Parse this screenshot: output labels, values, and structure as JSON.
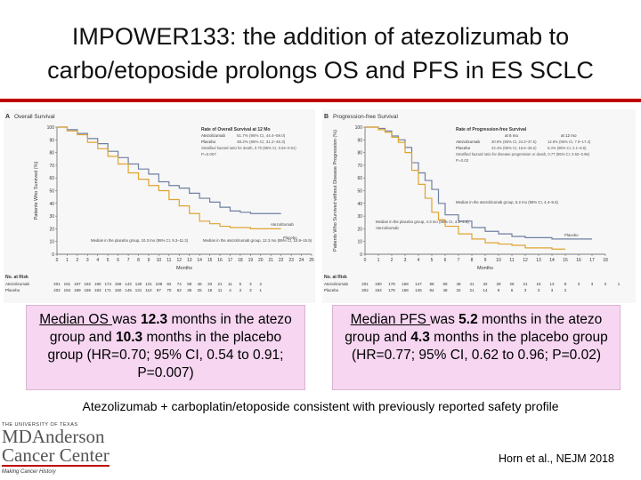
{
  "slide": {
    "title_line1": "IMPOWER133: the addition of atezolizumab to",
    "title_line2": "carbo/etoposide prolongs OS and PFS in ES SCLC",
    "accent_color": "#c00000",
    "safety_note": "Atezolizumab + carboplatin/etoposide consistent with previously reported safety profile",
    "citation": "Horn et al., NEJM 2018"
  },
  "logo": {
    "university": "THE UNIVERSITY OF TEXAS",
    "line1": "MDAnderson",
    "line2": "Cancer Center",
    "tagline": "Making Cancer History"
  },
  "summary_os": {
    "u": "Median OS ",
    "t1": "was ",
    "v1": "12.3",
    "t2": " months in the atezo group and ",
    "v2": "10.3",
    "t3": " months in the placebo group (HR=0.70; 95% CI, 0.54 to 0.91; P=0.007)"
  },
  "summary_pfs": {
    "u": "Median PFS ",
    "t1": "was ",
    "v1": "5.2",
    "t2": " months in the atezo group and ",
    "v2": "4.3",
    "t3": " months in the placebo group (HR=0.77; 95% CI, 0.62 to 0.96; P=0.02)"
  },
  "colors": {
    "atezolizumab": "#6f7fa3",
    "placebo": "#e0a431",
    "background_fill": "#e8e8e8"
  },
  "chart_data": [
    {
      "type": "line",
      "panel": "A",
      "title": "Overall Survival",
      "xlabel": "Months",
      "ylabel": "Patients Who Survived (%)",
      "xlim": [
        0,
        25
      ],
      "ylim": [
        0,
        100
      ],
      "x_ticks": [
        0,
        1,
        2,
        3,
        4,
        5,
        6,
        7,
        8,
        9,
        10,
        11,
        12,
        13,
        14,
        15,
        16,
        17,
        18,
        19,
        20,
        21,
        22,
        23,
        24,
        25
      ],
      "y_ticks": [
        0,
        10,
        20,
        30,
        40,
        50,
        60,
        70,
        80,
        90,
        100
      ],
      "box_heading": "Rate of Overall Survival at 12 Mo",
      "box_rows": [
        {
          "name": "Atezolizumab",
          "stat": "51.7% (95% CI, 44.4–59.0)"
        },
        {
          "name": "Placebo",
          "stat": "38.2% (95% CI, 31.2–45.3)"
        }
      ],
      "box_note1": "Stratified hazard ratio for death, 0.70 (95% CI, 0.54–0.91)",
      "box_note2": "P=0.007",
      "annotations": [
        "Median in the placebo group, 10.3 mo (95% CI, 9.3–11.3)",
        "Median in the atezolizumab group, 12.3 mo (95% CI, 10.8–15.9)",
        "Atezolizumab",
        "Placebo"
      ],
      "series": [
        {
          "name": "Atezolizumab",
          "x": [
            0,
            1,
            2,
            3,
            4,
            5,
            6,
            7,
            8,
            9,
            10,
            11,
            12,
            13,
            14,
            15,
            16,
            17,
            18,
            19,
            20,
            21,
            22
          ],
          "y": [
            100,
            98,
            95,
            91,
            87,
            81,
            76,
            71,
            67,
            63,
            57,
            54,
            52,
            48,
            44,
            41,
            37,
            34,
            33,
            32,
            32,
            32,
            32
          ]
        },
        {
          "name": "Placebo",
          "x": [
            0,
            1,
            2,
            3,
            4,
            5,
            6,
            7,
            8,
            9,
            10,
            11,
            12,
            13,
            14,
            15,
            16,
            17,
            18,
            19,
            20,
            21,
            22
          ],
          "y": [
            100,
            97,
            94,
            88,
            83,
            77,
            71,
            64,
            59,
            54,
            50,
            43,
            38,
            32,
            26,
            24,
            22,
            21,
            21,
            20,
            20,
            20,
            20
          ]
        }
      ],
      "at_risk_heading": "No. at Risk",
      "at_risk": [
        {
          "name": "Atezolizumab",
          "counts": [
            "201",
            "191",
            "187",
            "182",
            "180",
            "174",
            "159",
            "142",
            "130",
            "121",
            "108",
            "92",
            "74",
            "58",
            "46",
            "33",
            "21",
            "11",
            "5",
            "3",
            "2"
          ]
        },
        {
          "name": "Placebo",
          "counts": [
            "202",
            "194",
            "189",
            "186",
            "183",
            "171",
            "160",
            "145",
            "131",
            "110",
            "87",
            "70",
            "52",
            "36",
            "25",
            "18",
            "11",
            "4",
            "3",
            "3",
            "1"
          ]
        }
      ]
    },
    {
      "type": "line",
      "panel": "B",
      "title": "Progression-free Survival",
      "xlabel": "Months",
      "ylabel": "Patients Who Survived without Disease Progression (%)",
      "xlim": [
        0,
        18
      ],
      "ylim": [
        0,
        100
      ],
      "x_ticks": [
        0,
        1,
        2,
        3,
        4,
        5,
        6,
        7,
        8,
        9,
        10,
        11,
        12,
        13,
        14,
        15,
        16,
        17,
        18
      ],
      "y_ticks": [
        0,
        10,
        20,
        30,
        40,
        50,
        60,
        70,
        80,
        90,
        100
      ],
      "box_heading": "Rate of Progression-free Survival",
      "box_cols": [
        "at 6 mo",
        "at 12 mo"
      ],
      "box_rows": [
        {
          "name": "Atezolizumab",
          "stat6": "30.9% (95% CI, 24.3–37.5)",
          "stat12": "12.6% (95% CI, 7.9–17.4)"
        },
        {
          "name": "Placebo",
          "stat6": "22.4% (95% CI, 16.6–28.2)",
          "stat12": "5.4% (95% CI, 2.1–8.6)"
        }
      ],
      "box_note1": "Stratified hazard ratio for disease progression or death, 0.77 (95% CI, 0.62–0.96)",
      "box_note2": "P=0.02",
      "annotations": [
        "Median in the atezolizumab group, 5.2 mo (95% CI, 4.4–5.6)",
        "Median in the placebo group, 4.3 mo (95% CI, 4.2–4.5)",
        "Atezolizumab",
        "Placebo"
      ],
      "series": [
        {
          "name": "Atezolizumab",
          "x": [
            0,
            1,
            1.5,
            2,
            2.5,
            3,
            3.5,
            4,
            4.5,
            5,
            5.5,
            6,
            7,
            8,
            9,
            10,
            11,
            12,
            13,
            14,
            15,
            16,
            17
          ],
          "y": [
            100,
            99,
            97,
            93,
            90,
            84,
            72,
            64,
            58,
            51,
            40,
            31,
            26,
            21,
            18,
            16,
            14,
            13,
            13,
            12,
            12,
            12,
            12
          ]
        },
        {
          "name": "Placebo",
          "x": [
            0,
            1,
            1.5,
            2,
            2.5,
            3,
            3.5,
            4,
            4.5,
            5,
            5.5,
            6,
            7,
            8,
            9,
            10,
            11,
            12,
            13,
            14,
            15
          ],
          "y": [
            100,
            98,
            96,
            92,
            88,
            80,
            66,
            55,
            44,
            33,
            27,
            22,
            16,
            12,
            9,
            8,
            7,
            5,
            5,
            4,
            4
          ]
        }
      ],
      "at_risk_heading": "No. at Risk",
      "at_risk": [
        {
          "name": "Atezolizumab",
          "counts": [
            "201",
            "190",
            "178",
            "158",
            "147",
            "98",
            "58",
            "48",
            "41",
            "32",
            "29",
            "26",
            "21",
            "15",
            "13",
            "8",
            "3",
            "3",
            "2",
            "1"
          ]
        },
        {
          "name": "Placebo",
          "counts": [
            "202",
            "194",
            "179",
            "158",
            "145",
            "84",
            "48",
            "32",
            "21",
            "14",
            "9",
            "6",
            "3",
            "3",
            "3",
            "2"
          ]
        }
      ]
    }
  ]
}
